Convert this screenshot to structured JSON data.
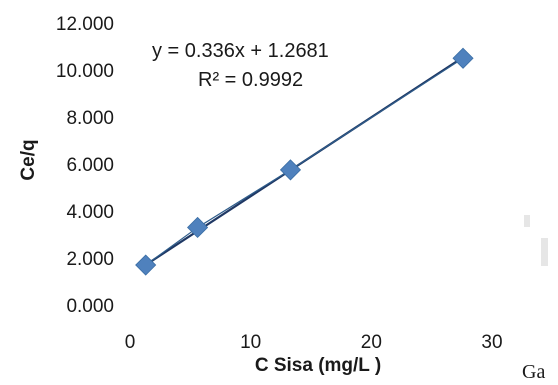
{
  "chart_data": {
    "type": "scatter",
    "title": "",
    "xlabel": "C Sisa (mg/L )",
    "ylabel": "Ce/q",
    "xlim": [
      0,
      30
    ],
    "ylim": [
      0,
      12
    ],
    "x_ticks": [
      0,
      10,
      20,
      30
    ],
    "x_tick_labels": [
      "0",
      "10",
      "20",
      "30"
    ],
    "y_ticks": [
      0,
      2,
      4,
      6,
      8,
      10,
      12
    ],
    "y_tick_labels": [
      "0.000",
      "2.000",
      "4.000",
      "6.000",
      "8.000",
      "10.000",
      "12.000"
    ],
    "grid": false,
    "legend": false,
    "marker": "diamond",
    "marker_color": "#4f81bd",
    "line_color": "#1f3864",
    "series": [
      {
        "x": [
          1.3,
          5.6,
          13.3,
          27.6
        ],
        "y": [
          1.7,
          3.3,
          5.75,
          10.5
        ]
      }
    ],
    "trendline": {
      "slope": 0.336,
      "intercept": 1.2681
    },
    "annotations": [
      "y = 0.336x + 1.2681",
      "R² = 0.9992"
    ]
  },
  "side_text": "Ga"
}
